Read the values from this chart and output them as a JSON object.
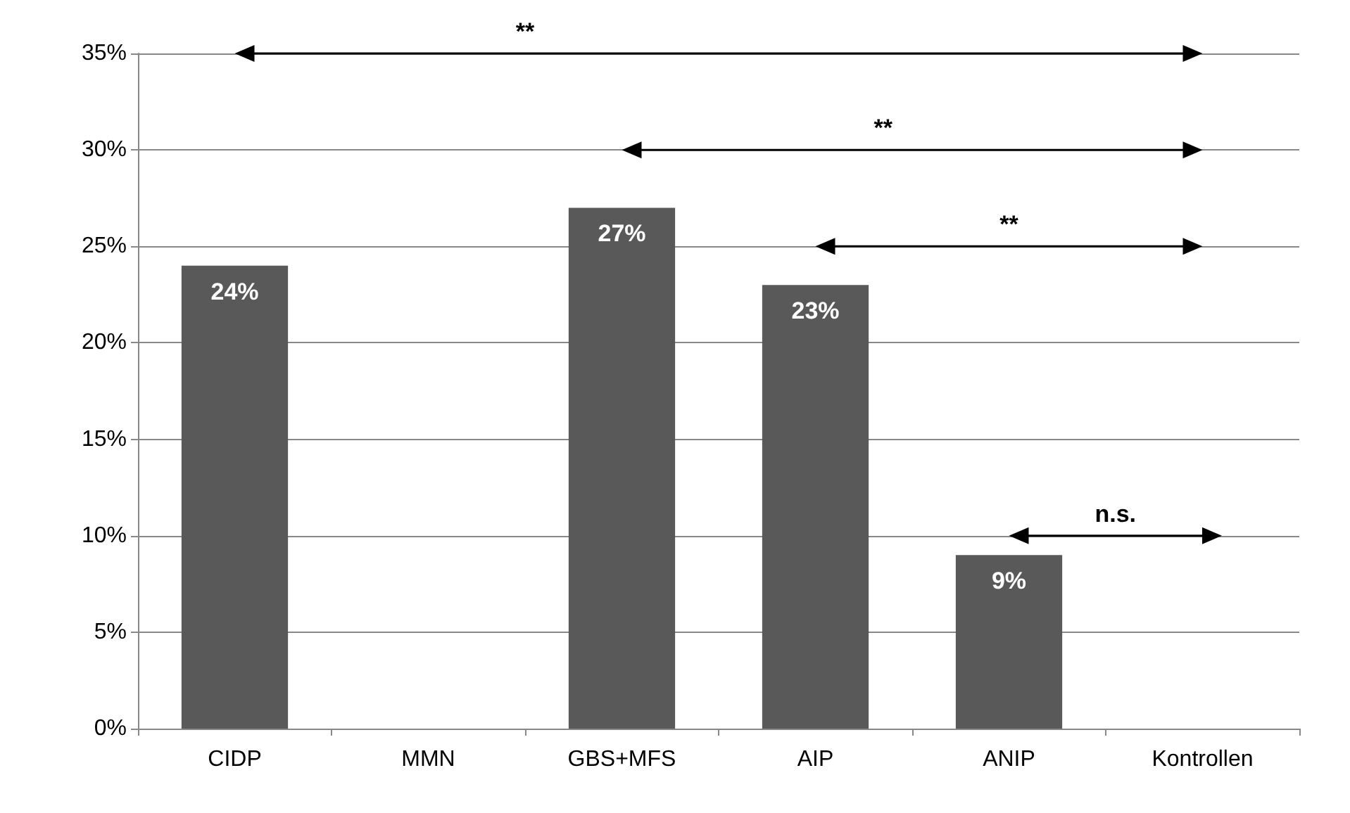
{
  "chart_data": {
    "type": "bar",
    "categories": [
      "CIDP",
      "MMN",
      "GBS+MFS",
      "AIP",
      "ANIP",
      "Kontrollen"
    ],
    "values": [
      24,
      null,
      27,
      23,
      9,
      null
    ],
    "value_labels": [
      "24%",
      null,
      "27%",
      "23%",
      "9%",
      null
    ],
    "color": "#595959",
    "ylim": [
      0,
      35
    ],
    "yticks": [
      {
        "value": 0,
        "label": "0%"
      },
      {
        "value": 5,
        "label": "5%"
      },
      {
        "value": 10,
        "label": "10%"
      },
      {
        "value": 15,
        "label": "15%"
      },
      {
        "value": 20,
        "label": "20%"
      },
      {
        "value": 25,
        "label": "25%"
      },
      {
        "value": 30,
        "label": "30%"
      },
      {
        "value": 35,
        "label": "35%"
      }
    ],
    "grid": "y",
    "annotations": [
      "**",
      "**",
      "**",
      "n.s."
    ]
  }
}
